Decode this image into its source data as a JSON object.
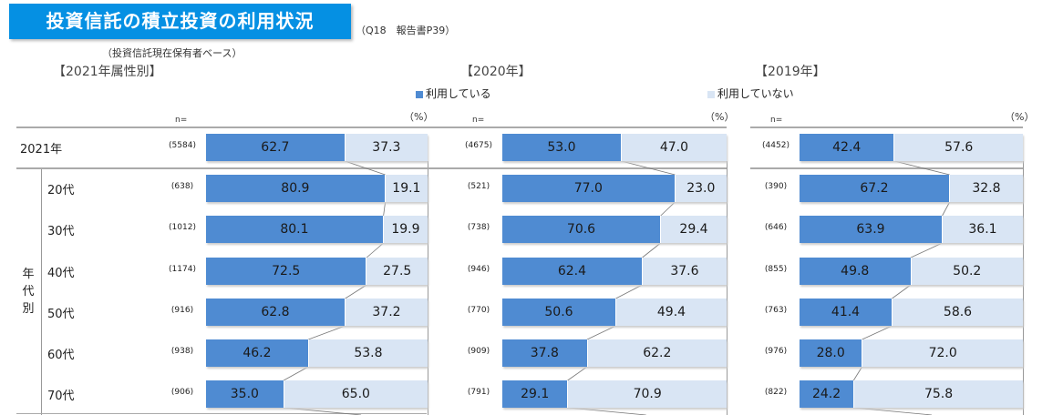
{
  "title": "投資信託の積立投資の利用状況",
  "source_note": "（Q18　報告書P39）",
  "base_note": "（投資信託現在保有者ベース）",
  "legend": {
    "used": "利用している",
    "not_used": "利用していない"
  },
  "colors": {
    "used": "#4f8bd2",
    "not_used": "#d9e5f4",
    "title_bg": "#0590e3"
  },
  "n_label": "n=",
  "unit_label": "（%）",
  "group_label": [
    "年",
    "代",
    "別"
  ],
  "row_labels": [
    "2021年",
    "20代",
    "30代",
    "40代",
    "50代",
    "60代",
    "70代"
  ],
  "chart_data": [
    {
      "type": "bar",
      "stacked": true,
      "orientation": "horizontal",
      "title": "【2021年属性別】",
      "categories": [
        "2021年",
        "20代",
        "30代",
        "40代",
        "50代",
        "60代",
        "70代"
      ],
      "n": [
        "(5584)",
        "(638)",
        "(1012)",
        "(1174)",
        "(916)",
        "(938)",
        "(906)"
      ],
      "series": [
        {
          "name": "利用している",
          "values": [
            62.7,
            80.9,
            80.1,
            72.5,
            62.8,
            46.2,
            35.0
          ]
        },
        {
          "name": "利用していない",
          "values": [
            37.3,
            19.1,
            19.9,
            27.5,
            37.2,
            53.8,
            65.0
          ]
        }
      ],
      "xlim": [
        0,
        100
      ]
    },
    {
      "type": "bar",
      "stacked": true,
      "orientation": "horizontal",
      "title": "【2020年】",
      "categories": [
        "2020年",
        "20代",
        "30代",
        "40代",
        "50代",
        "60代",
        "70代"
      ],
      "n": [
        "(4675)",
        "(521)",
        "(738)",
        "(946)",
        "(770)",
        "(909)",
        "(791)"
      ],
      "series": [
        {
          "name": "利用している",
          "values": [
            53.0,
            77.0,
            70.6,
            62.4,
            50.6,
            37.8,
            29.1
          ]
        },
        {
          "name": "利用していない",
          "values": [
            47.0,
            23.0,
            29.4,
            37.6,
            49.4,
            62.2,
            70.9
          ]
        }
      ],
      "xlim": [
        0,
        100
      ]
    },
    {
      "type": "bar",
      "stacked": true,
      "orientation": "horizontal",
      "title": "【2019年】",
      "categories": [
        "2019年",
        "20代",
        "30代",
        "40代",
        "50代",
        "60代",
        "70代"
      ],
      "n": [
        "(4452)",
        "(390)",
        "(646)",
        "(855)",
        "(763)",
        "(976)",
        "(822)"
      ],
      "series": [
        {
          "name": "利用している",
          "values": [
            42.4,
            67.2,
            63.9,
            49.8,
            41.4,
            28.0,
            24.2
          ]
        },
        {
          "name": "利用していない",
          "values": [
            57.6,
            32.8,
            36.1,
            50.2,
            58.6,
            72.0,
            75.8
          ]
        }
      ],
      "xlim": [
        0,
        100
      ]
    }
  ]
}
